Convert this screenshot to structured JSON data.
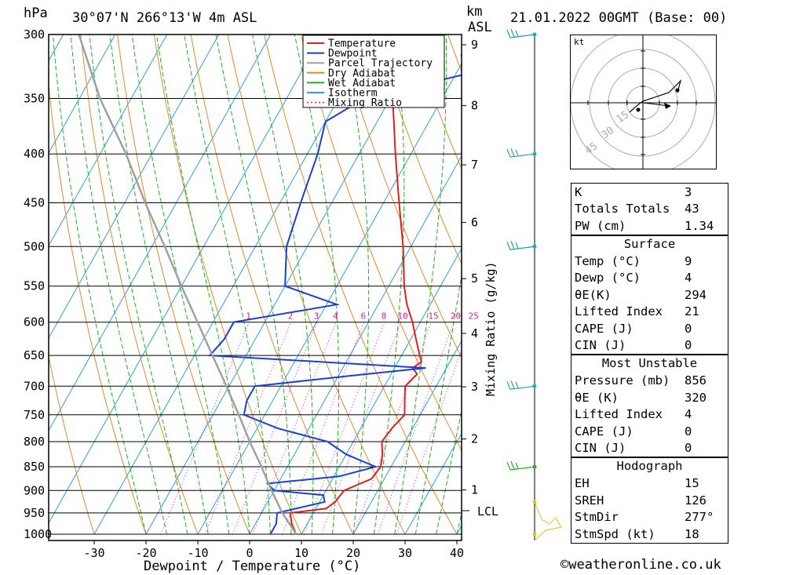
{
  "header": {
    "location": "30°07'N 266°13'W 4m ASL",
    "datetime": "21.01.2022 00GMT (Base: 00)",
    "pressure_unit": "hPa",
    "height_unit_1": "km",
    "height_unit_2": "ASL"
  },
  "chart_data": {
    "type": "line",
    "chart_kind": "skew-T log-P diagram",
    "xlabel": "Dewpoint / Temperature (°C)",
    "ylabel": "hPa",
    "right_label": "Mixing Ratio (g/kg)",
    "x_ticks": [
      -30,
      -20,
      -10,
      0,
      10,
      20,
      30,
      40
    ],
    "pressure_ticks": [
      300,
      350,
      400,
      450,
      500,
      550,
      600,
      650,
      700,
      750,
      800,
      850,
      900,
      950,
      1000
    ],
    "height_ticks_km": [
      1,
      2,
      3,
      4,
      5,
      6,
      7,
      8,
      9
    ],
    "lcl_label": "LCL",
    "mixing_ratio_labels": [
      "1",
      "2",
      "3",
      "4",
      "6",
      "8",
      "10",
      "15",
      "20",
      "25"
    ],
    "legend": [
      {
        "name": "Temperature",
        "color": "#e02020",
        "style": "solid"
      },
      {
        "name": "Dewpoint",
        "color": "#1a3fd6",
        "style": "solid"
      },
      {
        "name": "Parcel Trajectory",
        "color": "#a0a0a0",
        "style": "solid"
      },
      {
        "name": "Dry Adiabat",
        "color": "#e08a2a",
        "style": "solid"
      },
      {
        "name": "Wet Adiabat",
        "color": "#22b022",
        "style": "solid"
      },
      {
        "name": "Isotherm",
        "color": "#2aa0e0",
        "style": "solid"
      },
      {
        "name": "Mixing Ratio",
        "color": "#d0209a",
        "style": "dotted"
      }
    ],
    "series": [
      {
        "name": "Temperature",
        "points": [
          [
            1000,
            9
          ],
          [
            975,
            7
          ],
          [
            950,
            5.5
          ],
          [
            940,
            12
          ],
          [
            925,
            13
          ],
          [
            900,
            13.5
          ],
          [
            875,
            17.5
          ],
          [
            850,
            18
          ],
          [
            825,
            17
          ],
          [
            800,
            15.5
          ],
          [
            775,
            16
          ],
          [
            750,
            17
          ],
          [
            725,
            15.5
          ],
          [
            700,
            14
          ],
          [
            680,
            15
          ],
          [
            670,
            13.5
          ],
          [
            660,
            14.5
          ],
          [
            650,
            13.5
          ],
          [
            625,
            11
          ],
          [
            600,
            8.5
          ],
          [
            575,
            5.5
          ],
          [
            550,
            3
          ],
          [
            500,
            -1.5
          ],
          [
            450,
            -7
          ],
          [
            400,
            -13
          ],
          [
            350,
            -19.5
          ],
          [
            300,
            -25.5
          ]
        ]
      },
      {
        "name": "Dewpoint",
        "points": [
          [
            1000,
            4
          ],
          [
            975,
            4
          ],
          [
            950,
            3
          ],
          [
            925,
            11
          ],
          [
            910,
            10
          ],
          [
            900,
            0
          ],
          [
            885,
            -2
          ],
          [
            870,
            11
          ],
          [
            850,
            17
          ],
          [
            825,
            10
          ],
          [
            800,
            5
          ],
          [
            775,
            -6
          ],
          [
            750,
            -14
          ],
          [
            725,
            -15
          ],
          [
            700,
            -15
          ],
          [
            680,
            5
          ],
          [
            670,
            16
          ],
          [
            660,
            -5
          ],
          [
            650,
            -27
          ],
          [
            625,
            -26
          ],
          [
            600,
            -26
          ],
          [
            575,
            -8
          ],
          [
            550,
            -20
          ],
          [
            500,
            -24
          ],
          [
            450,
            -26
          ],
          [
            400,
            -28
          ],
          [
            370,
            -30
          ],
          [
            350,
            -25
          ],
          [
            330,
            -8
          ],
          [
            315,
            -11
          ],
          [
            300,
            -10
          ]
        ]
      },
      {
        "name": "Parcel Trajectory",
        "points": [
          [
            1000,
            9
          ],
          [
            950,
            4
          ],
          [
            900,
            -0.5
          ],
          [
            850,
            -5
          ],
          [
            800,
            -10
          ],
          [
            750,
            -15
          ],
          [
            700,
            -20.5
          ],
          [
            650,
            -26.5
          ],
          [
            600,
            -33
          ],
          [
            550,
            -40
          ],
          [
            500,
            -47.5
          ],
          [
            450,
            -56
          ],
          [
            400,
            -65
          ],
          [
            350,
            -76
          ],
          [
            300,
            -87
          ]
        ]
      }
    ],
    "wind_barb_levels": [
      300,
      400,
      500,
      700,
      850,
      925,
      1000
    ]
  },
  "hodograph": {
    "unit": "kt",
    "ring_labels": [
      "15",
      "30",
      "45"
    ]
  },
  "indices": {
    "top": [
      {
        "label": "K",
        "value": "3"
      },
      {
        "label": "Totals Totals",
        "value": "43"
      },
      {
        "label": "PW (cm)",
        "value": "1.34"
      }
    ],
    "surface": {
      "title": "Surface",
      "rows": [
        {
          "label": "Temp (°C)",
          "value": "9"
        },
        {
          "label": "Dewp (°C)",
          "value": "4"
        },
        {
          "label": "θE(K)",
          "value": "294"
        },
        {
          "label": "Lifted Index",
          "value": "21"
        },
        {
          "label": "CAPE (J)",
          "value": "0"
        },
        {
          "label": "CIN (J)",
          "value": "0"
        }
      ]
    },
    "most_unstable": {
      "title": "Most Unstable",
      "rows": [
        {
          "label": "Pressure (mb)",
          "value": "856"
        },
        {
          "label": "θE (K)",
          "value": "320"
        },
        {
          "label": "Lifted Index",
          "value": "4"
        },
        {
          "label": "CAPE (J)",
          "value": "0"
        },
        {
          "label": "CIN (J)",
          "value": "0"
        }
      ]
    },
    "hodograph": {
      "title": "Hodograph",
      "rows": [
        {
          "label": "EH",
          "value": "15"
        },
        {
          "label": "SREH",
          "value": "126"
        },
        {
          "label": "StmDir",
          "value": "277°"
        },
        {
          "label": "StmSpd (kt)",
          "value": "18"
        }
      ]
    }
  },
  "credit": "©weatheronline.co.uk"
}
